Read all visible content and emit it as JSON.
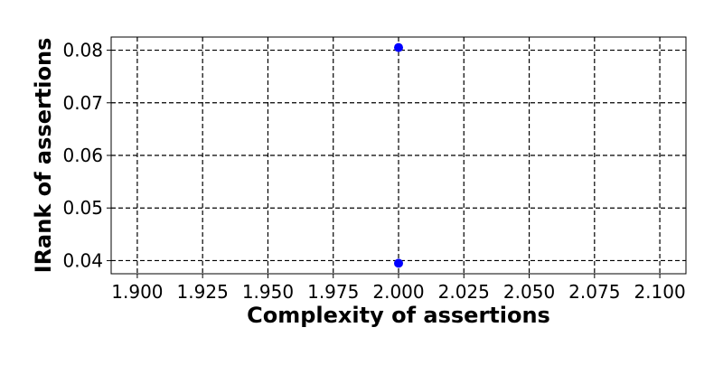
{
  "chart_data": {
    "type": "scatter",
    "title": "",
    "xlabel": "Complexity of assertions",
    "ylabel": "IRank of assertions",
    "xlim": [
      1.89,
      2.11
    ],
    "ylim": [
      0.0375,
      0.0825
    ],
    "x_ticks": [
      1.9,
      1.925,
      1.95,
      1.975,
      2.0,
      2.025,
      2.05,
      2.075,
      2.1
    ],
    "x_tick_labels": [
      "1.900",
      "1.925",
      "1.950",
      "1.975",
      "2.000",
      "2.025",
      "2.050",
      "2.075",
      "2.100"
    ],
    "y_ticks": [
      0.04,
      0.05,
      0.06,
      0.07,
      0.08
    ],
    "y_tick_labels": [
      "0.04",
      "0.05",
      "0.06",
      "0.07",
      "0.08"
    ],
    "grid": true,
    "grid_style": "dashed",
    "series": [
      {
        "color": "#0000ff",
        "points": [
          {
            "x": 2.0,
            "y": 0.0805
          },
          {
            "x": 2.0,
            "y": 0.0395
          }
        ]
      }
    ]
  }
}
